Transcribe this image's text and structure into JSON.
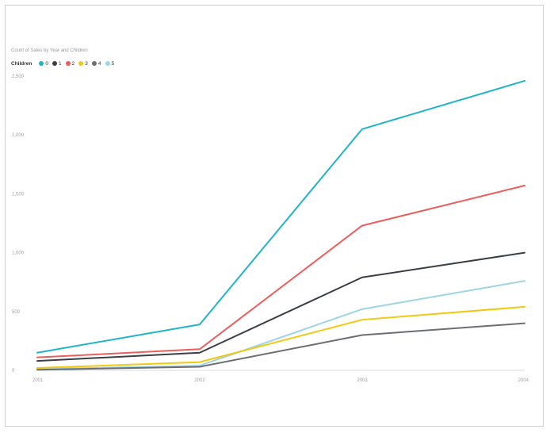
{
  "chart_data": {
    "type": "line",
    "title": "Count of Sales by Year and Children",
    "legend_title": "Children",
    "legend_position": "top-left",
    "grid": false,
    "x": [
      "2001",
      "2002",
      "2003",
      "2004"
    ],
    "xticks": [
      "2001",
      "2002",
      "2003",
      "2004"
    ],
    "yticks": [
      0,
      500,
      1000,
      1500,
      2000,
      2500
    ],
    "ytick_labels": [
      "0",
      "500",
      "1,000",
      "1,500",
      "2,000",
      "2,500"
    ],
    "ylim": [
      0,
      2500
    ],
    "series": [
      {
        "name": "0",
        "color": "#21b4c8",
        "values": [
          150,
          390,
          2050,
          2460
        ]
      },
      {
        "name": "1",
        "color": "#3a3e45",
        "values": [
          80,
          150,
          790,
          1000
        ]
      },
      {
        "name": "2",
        "color": "#ec5e5c",
        "values": [
          110,
          180,
          1230,
          1570
        ]
      },
      {
        "name": "3",
        "color": "#f2c811",
        "values": [
          20,
          70,
          430,
          540
        ]
      },
      {
        "name": "4",
        "color": "#6b6e72",
        "values": [
          5,
          30,
          300,
          400
        ]
      },
      {
        "name": "5",
        "color": "#9dd4e6",
        "values": [
          10,
          40,
          520,
          760
        ]
      }
    ]
  }
}
